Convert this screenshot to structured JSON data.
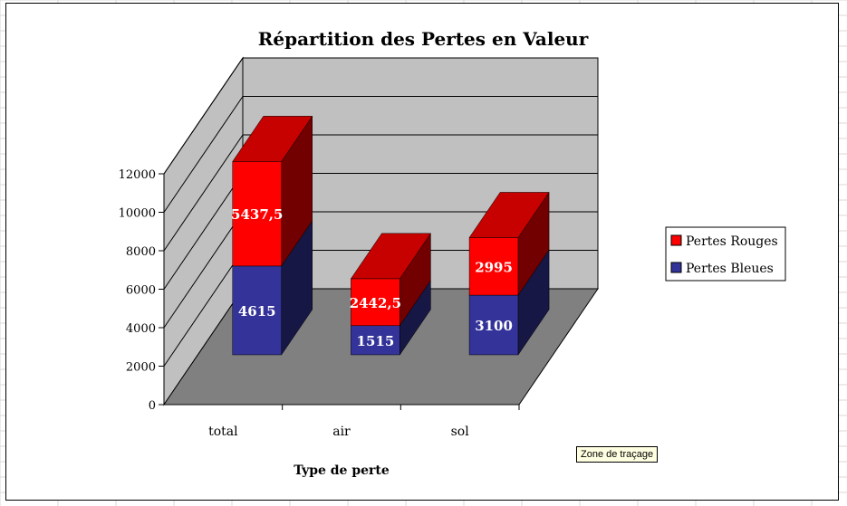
{
  "chart_data": {
    "type": "bar",
    "stacked": true,
    "three_d": true,
    "title": "Répartition des Pertes en Valeur",
    "xlabel": "Type de perte",
    "ylabel": "",
    "categories": [
      "total",
      "air",
      "sol"
    ],
    "series": [
      {
        "name": "Pertes Bleues",
        "values": [
          4615,
          1515,
          3100
        ],
        "color": "#333399",
        "labels": [
          "4615",
          "1515",
          "3100"
        ]
      },
      {
        "name": "Pertes Rouges",
        "values": [
          5437.5,
          2442.5,
          2995
        ],
        "color": "#ff0000",
        "labels": [
          "5437,5",
          "2442,5",
          "2995"
        ]
      }
    ],
    "ylim": [
      0,
      12000
    ],
    "yticks": [
      "0",
      "2000",
      "4000",
      "6000",
      "8000",
      "10000",
      "12000"
    ],
    "grid": true,
    "legend_position": "right",
    "legend_order": [
      "Pertes Rouges",
      "Pertes Bleues"
    ],
    "colors": {
      "wall": "#c0c0c0",
      "floor": "#808080",
      "gridline": "#000000"
    }
  },
  "tooltip": {
    "text": "Zone de traçage"
  }
}
